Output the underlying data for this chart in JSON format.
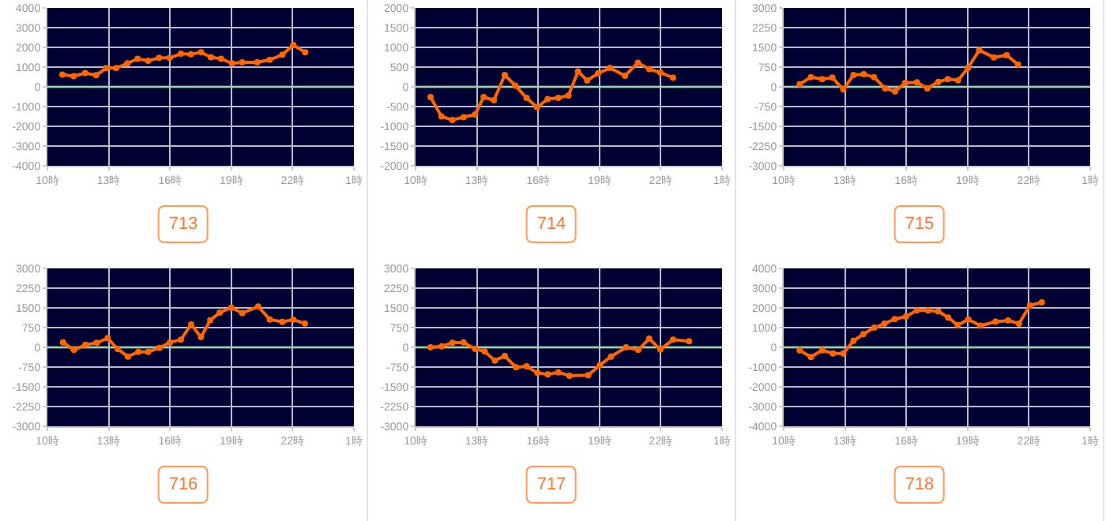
{
  "chart_data": [
    {
      "type": "line",
      "title": "713",
      "x": [
        "2000-01-01T10:44",
        "2000-01-01T11:17",
        "2000-01-01T11:51",
        "2000-01-01T12:23",
        "2000-01-01T12:53",
        "2000-01-01T13:22",
        "2000-01-01T13:55",
        "2000-01-01T14:25",
        "2000-01-01T14:56",
        "2000-01-01T15:28",
        "2000-01-01T15:59",
        "2000-01-01T16:32",
        "2000-01-01T17:01",
        "2000-01-01T17:31",
        "2000-01-01T18:00",
        "2000-01-01T18:30",
        "2000-01-01T19:02",
        "2000-01-01T19:32",
        "2000-01-01T20:16",
        "2000-01-01T20:53",
        "2000-01-01T21:30",
        "2000-01-01T22:02",
        "2000-01-01T22:37"
      ],
      "series": [
        {
          "color": "#ff6600",
          "values": [
            620,
            540,
            700,
            590,
            950,
            950,
            1190,
            1420,
            1320,
            1470,
            1470,
            1680,
            1650,
            1750,
            1500,
            1420,
            1190,
            1240,
            1240,
            1370,
            1630,
            2120,
            1750
          ]
        }
      ],
      "xlim": [
        "2000-01-01T10:00",
        "2000-01-02T01:00"
      ],
      "xticks": [
        {
          "value": "2000-01-01T10:00",
          "label": "10時"
        },
        {
          "value": "2000-01-01T13:00",
          "label": "13時"
        },
        {
          "value": "2000-01-01T16:00",
          "label": "16時"
        },
        {
          "value": "2000-01-01T19:00",
          "label": "19時"
        },
        {
          "value": "2000-01-01T22:00",
          "label": "22時"
        },
        {
          "value": "2000-01-02T01:00",
          "label": "1時"
        }
      ],
      "ylim": [
        -4000,
        4000
      ],
      "yticks": [
        -4000,
        -3000,
        -2000,
        -1000,
        0,
        1000,
        2000,
        3000,
        4000
      ],
      "ref_lines": [
        {
          "axis": "y",
          "value": 0,
          "color": "#33cc33"
        }
      ],
      "grid": true,
      "marker": "circle",
      "line_style": "solid"
    },
    {
      "type": "line",
      "title": "714",
      "x": [
        "2000-01-01T10:44",
        "2000-01-01T11:16",
        "2000-01-01T11:48",
        "2000-01-01T12:21",
        "2000-01-01T12:55",
        "2000-01-01T13:20",
        "2000-01-01T13:50",
        "2000-01-01T14:22",
        "2000-01-01T14:53",
        "2000-01-01T15:26",
        "2000-01-01T15:57",
        "2000-01-01T16:28",
        "2000-01-01T16:59",
        "2000-01-01T17:29",
        "2000-01-01T17:57",
        "2000-01-01T18:24",
        "2000-01-01T18:56",
        "2000-01-01T19:31",
        "2000-01-01T20:15",
        "2000-01-01T20:53",
        "2000-01-01T21:26",
        "2000-01-01T21:59",
        "2000-01-01T22:36"
      ],
      "series": [
        {
          "color": "#ff6600",
          "values": [
            -260,
            -750,
            -840,
            -770,
            -700,
            -260,
            -340,
            300,
            30,
            -280,
            -520,
            -310,
            -280,
            -220,
            390,
            160,
            340,
            480,
            280,
            610,
            450,
            360,
            230
          ]
        }
      ],
      "xlim": [
        "2000-01-01T10:00",
        "2000-01-02T01:00"
      ],
      "xticks": [
        {
          "value": "2000-01-01T10:00",
          "label": "10時"
        },
        {
          "value": "2000-01-01T13:00",
          "label": "13時"
        },
        {
          "value": "2000-01-01T16:00",
          "label": "16時"
        },
        {
          "value": "2000-01-01T19:00",
          "label": "19時"
        },
        {
          "value": "2000-01-01T22:00",
          "label": "22時"
        },
        {
          "value": "2000-01-02T01:00",
          "label": "1時"
        }
      ],
      "ylim": [
        -2000,
        2000
      ],
      "yticks": [
        -2000,
        -1500,
        -1000,
        -500,
        0,
        500,
        1000,
        1500,
        2000
      ],
      "ref_lines": [
        {
          "axis": "y",
          "value": 0,
          "color": "#33cc33"
        }
      ],
      "grid": true,
      "marker": "circle",
      "line_style": "solid"
    },
    {
      "type": "line",
      "title": "715",
      "x": [
        "2000-01-01T10:47",
        "2000-01-01T11:20",
        "2000-01-01T11:53",
        "2000-01-01T12:23",
        "2000-01-01T12:55",
        "2000-01-01T13:25",
        "2000-01-01T13:55",
        "2000-01-01T14:25",
        "2000-01-01T14:58",
        "2000-01-01T15:27",
        "2000-01-01T15:57",
        "2000-01-01T16:31",
        "2000-01-01T17:02",
        "2000-01-01T17:34",
        "2000-01-01T18:02",
        "2000-01-01T18:32",
        "2000-01-01T19:01",
        "2000-01-01T19:34",
        "2000-01-01T20:17",
        "2000-01-01T20:55",
        "2000-01-01T21:28"
      ],
      "series": [
        {
          "color": "#ff6600",
          "values": [
            100,
            370,
            290,
            350,
            -100,
            450,
            480,
            370,
            -60,
            -170,
            150,
            170,
            -60,
            190,
            290,
            250,
            720,
            1390,
            1120,
            1200,
            850
          ]
        }
      ],
      "xlim": [
        "2000-01-01T10:00",
        "2000-01-02T01:00"
      ],
      "xticks": [
        {
          "value": "2000-01-01T10:00",
          "label": "10時"
        },
        {
          "value": "2000-01-01T13:00",
          "label": "13時"
        },
        {
          "value": "2000-01-01T16:00",
          "label": "16時"
        },
        {
          "value": "2000-01-01T19:00",
          "label": "19時"
        },
        {
          "value": "2000-01-01T22:00",
          "label": "22時"
        },
        {
          "value": "2000-01-02T01:00",
          "label": "1時"
        }
      ],
      "ylim": [
        -3000,
        3000
      ],
      "yticks": [
        -3000,
        -2250,
        -1500,
        -750,
        0,
        750,
        1500,
        2250,
        3000
      ],
      "ref_lines": [
        {
          "axis": "y",
          "value": 0,
          "color": "#33cc33"
        }
      ],
      "grid": true,
      "marker": "circle",
      "line_style": "solid"
    },
    {
      "type": "line",
      "title": "716",
      "x": [
        "2000-01-01T10:46",
        "2000-01-01T11:18",
        "2000-01-01T11:52",
        "2000-01-01T12:25",
        "2000-01-01T12:57",
        "2000-01-01T13:26",
        "2000-01-01T13:56",
        "2000-01-01T14:27",
        "2000-01-01T14:56",
        "2000-01-01T15:29",
        "2000-01-01T16:00",
        "2000-01-01T16:32",
        "2000-01-01T17:02",
        "2000-01-01T17:31",
        "2000-01-01T17:58",
        "2000-01-01T18:26",
        "2000-01-01T19:00",
        "2000-01-01T19:32",
        "2000-01-01T20:19",
        "2000-01-01T20:53",
        "2000-01-01T21:30",
        "2000-01-01T22:02",
        "2000-01-01T22:36"
      ],
      "series": [
        {
          "color": "#ff6600",
          "values": [
            190,
            -100,
            100,
            170,
            350,
            -60,
            -350,
            -170,
            -170,
            -20,
            190,
            290,
            870,
            390,
            1030,
            1320,
            1510,
            1300,
            1550,
            1060,
            970,
            1050,
            910
          ]
        }
      ],
      "xlim": [
        "2000-01-01T10:00",
        "2000-01-02T01:00"
      ],
      "xticks": [
        {
          "value": "2000-01-01T10:00",
          "label": "10時"
        },
        {
          "value": "2000-01-01T13:00",
          "label": "13時"
        },
        {
          "value": "2000-01-01T16:00",
          "label": "16時"
        },
        {
          "value": "2000-01-01T19:00",
          "label": "19時"
        },
        {
          "value": "2000-01-01T22:00",
          "label": "22時"
        },
        {
          "value": "2000-01-02T01:00",
          "label": "1時"
        }
      ],
      "ylim": [
        -3000,
        3000
      ],
      "yticks": [
        -3000,
        -2250,
        -1500,
        -750,
        0,
        750,
        1500,
        2250,
        3000
      ],
      "ref_lines": [
        {
          "axis": "y",
          "value": 0,
          "color": "#33cc33"
        }
      ],
      "grid": true,
      "marker": "circle",
      "line_style": "solid"
    },
    {
      "type": "line",
      "title": "717",
      "x": [
        "2000-01-01T10:44",
        "2000-01-01T11:17",
        "2000-01-01T11:48",
        "2000-01-01T12:21",
        "2000-01-01T12:55",
        "2000-01-01T13:23",
        "2000-01-01T13:53",
        "2000-01-01T14:22",
        "2000-01-01T14:55",
        "2000-01-01T15:26",
        "2000-01-01T15:58",
        "2000-01-01T16:28",
        "2000-01-01T16:59",
        "2000-01-01T17:32",
        "2000-01-01T18:27",
        "2000-01-01T19:01",
        "2000-01-01T19:34",
        "2000-01-01T20:18",
        "2000-01-01T20:54",
        "2000-01-01T21:26",
        "2000-01-01T21:59",
        "2000-01-01T22:36",
        "2000-01-01T23:23"
      ],
      "series": [
        {
          "color": "#ff6600",
          "values": [
            0,
            40,
            170,
            190,
            -60,
            -160,
            -500,
            -330,
            -760,
            -720,
            -970,
            -1030,
            -950,
            -1080,
            -1060,
            -680,
            -350,
            0,
            -100,
            330,
            -80,
            290,
            230
          ]
        }
      ],
      "xlim": [
        "2000-01-01T10:00",
        "2000-01-02T01:00"
      ],
      "xticks": [
        {
          "value": "2000-01-01T10:00",
          "label": "10時"
        },
        {
          "value": "2000-01-01T13:00",
          "label": "13時"
        },
        {
          "value": "2000-01-01T16:00",
          "label": "16時"
        },
        {
          "value": "2000-01-01T19:00",
          "label": "19時"
        },
        {
          "value": "2000-01-01T22:00",
          "label": "22時"
        },
        {
          "value": "2000-01-02T01:00",
          "label": "1時"
        }
      ],
      "ylim": [
        -3000,
        3000
      ],
      "yticks": [
        -3000,
        -2250,
        -1500,
        -750,
        0,
        750,
        1500,
        2250,
        3000
      ],
      "ref_lines": [
        {
          "axis": "y",
          "value": 0,
          "color": "#33cc33"
        }
      ],
      "grid": true,
      "marker": "circle",
      "line_style": "solid"
    },
    {
      "type": "line",
      "title": "718",
      "x": [
        "2000-01-01T10:47",
        "2000-01-01T11:20",
        "2000-01-01T11:53",
        "2000-01-01T12:25",
        "2000-01-01T12:55",
        "2000-01-01T13:25",
        "2000-01-01T13:54",
        "2000-01-01T14:26",
        "2000-01-01T14:56",
        "2000-01-01T15:26",
        "2000-01-01T15:59",
        "2000-01-01T16:31",
        "2000-01-01T17:04",
        "2000-01-01T17:34",
        "2000-01-01T18:03",
        "2000-01-01T18:31",
        "2000-01-01T19:02",
        "2000-01-01T19:38",
        "2000-01-01T20:22",
        "2000-01-01T20:59",
        "2000-01-01T21:31",
        "2000-01-01T22:03",
        "2000-01-01T22:38"
      ],
      "series": [
        {
          "color": "#ff6600",
          "values": [
            -150,
            -490,
            -150,
            -310,
            -310,
            330,
            670,
            1000,
            1200,
            1430,
            1560,
            1870,
            1870,
            1820,
            1510,
            1130,
            1410,
            1100,
            1300,
            1360,
            1200,
            2120,
            2280
          ]
        }
      ],
      "xlim": [
        "2000-01-01T10:00",
        "2000-01-02T01:00"
      ],
      "xticks": [
        {
          "value": "2000-01-01T10:00",
          "label": "10時"
        },
        {
          "value": "2000-01-01T13:00",
          "label": "13時"
        },
        {
          "value": "2000-01-01T16:00",
          "label": "16時"
        },
        {
          "value": "2000-01-01T19:00",
          "label": "19時"
        },
        {
          "value": "2000-01-01T22:00",
          "label": "22時"
        },
        {
          "value": "2000-01-02T01:00",
          "label": "1時"
        }
      ],
      "ylim": [
        -4000,
        4000
      ],
      "yticks": [
        -4000,
        -3000,
        -2000,
        -1000,
        0,
        1000,
        2000,
        3000,
        4000
      ],
      "ref_lines": [
        {
          "axis": "y",
          "value": 0,
          "color": "#33cc33"
        }
      ],
      "grid": true,
      "marker": "circle",
      "line_style": "solid"
    }
  ]
}
